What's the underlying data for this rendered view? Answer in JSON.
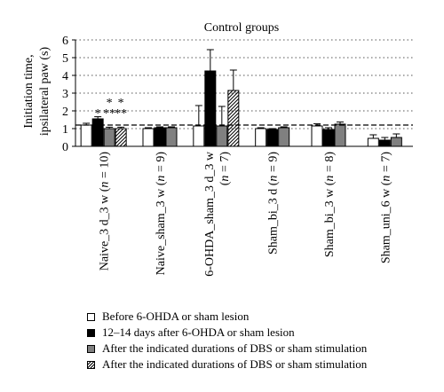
{
  "chart_data": {
    "type": "bar",
    "title": "Control groups",
    "ylabel_lines": [
      "Initiation time,",
      "ipsilateral paw (s)"
    ],
    "ylim": [
      0,
      6
    ],
    "yticks": [
      "0",
      "1",
      "2",
      "3",
      "4",
      "5",
      "6"
    ],
    "grid": "dotted horizontal",
    "reference_line": 1.2,
    "categories": [
      "Naive_3 d_3 w (n = 10)",
      "Naive_sham_3 w (n = 9)",
      "6-OHDA_sham_3 d_3 w (n = 7)",
      "Sham_bi_3 d (n = 9)",
      "Sham_bi_3 w (n = 8)",
      "Sham_uni_6 w (n = 7)"
    ],
    "series": [
      {
        "name": "Before 6-OHDA or sham lesion",
        "fill": "white",
        "values": [
          1.2,
          1.0,
          1.15,
          1.0,
          1.15,
          0.45
        ],
        "errors": [
          0.1,
          0.05,
          1.15,
          0.05,
          0.12,
          0.2
        ]
      },
      {
        "name": "12–14 days after 6-OHDA or sham lesion",
        "fill": "black",
        "values": [
          1.55,
          1.05,
          4.25,
          0.95,
          0.95,
          0.35
        ],
        "errors": [
          0.12,
          0.05,
          1.2,
          0.05,
          0.1,
          0.15
        ]
      },
      {
        "name": "After the indicated durations of DBS or sham stimulation",
        "fill": "gray",
        "values": [
          1.0,
          1.05,
          1.15,
          1.05,
          1.25,
          0.5
        ],
        "errors": [
          0.08,
          0.05,
          1.1,
          0.05,
          0.12,
          0.2
        ]
      },
      {
        "name": "After the indicated durations of DBS or sham stimulation",
        "fill": "hatch",
        "values": [
          1.0,
          null,
          3.15,
          null,
          null,
          null
        ],
        "errors": [
          0.08,
          null,
          1.15,
          null,
          null,
          null
        ]
      }
    ],
    "annotations": [
      {
        "category": 0,
        "series": 1,
        "text": "*",
        "level": 1
      },
      {
        "category": 0,
        "series": 2,
        "text": "**",
        "level": 1
      },
      {
        "category": 0,
        "series": 3,
        "text": "**",
        "level": 1
      },
      {
        "category": 0,
        "series": 2,
        "text": "*",
        "level": 2
      },
      {
        "category": 0,
        "series": 3,
        "text": "*",
        "level": 2
      }
    ]
  },
  "colors": {
    "white": "#ffffff",
    "black": "#000000",
    "gray": "#808080"
  }
}
